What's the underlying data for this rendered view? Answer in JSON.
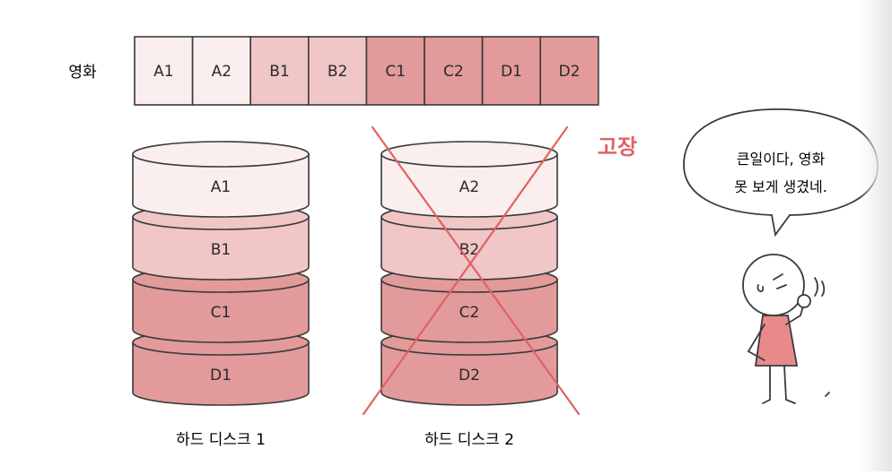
{
  "movie_label": "영화",
  "blocks": [
    {
      "label": "A1",
      "color": "#fbeeee"
    },
    {
      "label": "A2",
      "color": "#fbeeee"
    },
    {
      "label": "B1",
      "color": "#f0c6c6"
    },
    {
      "label": "B2",
      "color": "#f0c6c6"
    },
    {
      "label": "C1",
      "color": "#e29a9a"
    },
    {
      "label": "C2",
      "color": "#e29a9a"
    },
    {
      "label": "D1",
      "color": "#e29a9a"
    },
    {
      "label": "D2",
      "color": "#e29a9a"
    }
  ],
  "disks": [
    {
      "caption": "하드 디스크 1",
      "failed": false,
      "platters": [
        {
          "label": "A1",
          "color": "#fbeeee"
        },
        {
          "label": "B1",
          "color": "#f0c6c6"
        },
        {
          "label": "C1",
          "color": "#e29a9a"
        },
        {
          "label": "D1",
          "color": "#e29a9a"
        }
      ]
    },
    {
      "caption": "하드 디스크 2",
      "failed": true,
      "platters": [
        {
          "label": "A2",
          "color": "#fbeeee"
        },
        {
          "label": "B2",
          "color": "#f0c6c6"
        },
        {
          "label": "C2",
          "color": "#e29a9a"
        },
        {
          "label": "D2",
          "color": "#e29a9a"
        }
      ]
    }
  ],
  "failure_label": "고장",
  "speech": {
    "line1": "큰일이다, 영화",
    "line2": "못 보게 생겼네."
  },
  "colors": {
    "outline": "#3a3a3a",
    "failure": "#e06262",
    "dress": "#e98a8a"
  }
}
